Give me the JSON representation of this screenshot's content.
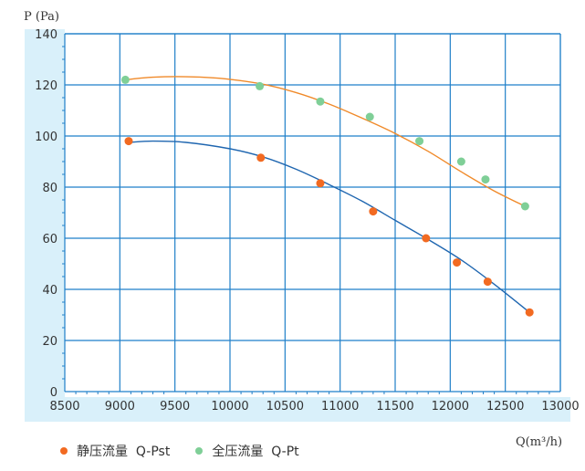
{
  "chart_data": {
    "type": "line",
    "ylabel": "P (Pa)",
    "xlabel": "Q(m³/h)",
    "xlim": [
      8500,
      13000
    ],
    "ylim": [
      0,
      140
    ],
    "x_ticks": [
      8500,
      9000,
      9500,
      10000,
      10500,
      11000,
      11500,
      12000,
      12500,
      13000
    ],
    "y_ticks": [
      0,
      20,
      40,
      60,
      80,
      100,
      120,
      140
    ],
    "grid": true,
    "legend_position": "bottom-left",
    "colors": {
      "plot_background": "#ffffff",
      "outer_background": "#d9f0fa",
      "grid": "#1f7fc9",
      "axis": "#1f7fc9"
    },
    "series": [
      {
        "name": "静压流量  Q-Pst",
        "marker_color": "#f26a21",
        "line_color": "#1f66b0",
        "points": [
          [
            9080,
            98
          ],
          [
            10280,
            91.5
          ],
          [
            10820,
            81.5
          ],
          [
            11300,
            70.5
          ],
          [
            11780,
            60
          ],
          [
            12060,
            50.5
          ],
          [
            12340,
            43
          ],
          [
            12720,
            31
          ]
        ],
        "curve": [
          [
            9080,
            97.5
          ],
          [
            9300,
            98
          ],
          [
            9600,
            97.5
          ],
          [
            10000,
            95
          ],
          [
            10300,
            91.8
          ],
          [
            10600,
            87
          ],
          [
            10900,
            81
          ],
          [
            11200,
            74.5
          ],
          [
            11500,
            67
          ],
          [
            11800,
            59.5
          ],
          [
            12100,
            51.5
          ],
          [
            12400,
            42
          ],
          [
            12720,
            31
          ]
        ]
      },
      {
        "name": "全压流量  Q-Pt",
        "marker_color": "#7fcf97",
        "line_color": "#f08a2a",
        "points": [
          [
            9050,
            122
          ],
          [
            10270,
            119.5
          ],
          [
            10820,
            113.5
          ],
          [
            11270,
            107.5
          ],
          [
            11720,
            98
          ],
          [
            12100,
            90
          ],
          [
            12320,
            83
          ],
          [
            12680,
            72.5
          ]
        ],
        "curve": [
          [
            9050,
            122
          ],
          [
            9300,
            123
          ],
          [
            9600,
            123.2
          ],
          [
            9900,
            122.6
          ],
          [
            10270,
            120.5
          ],
          [
            10600,
            117
          ],
          [
            10900,
            112.5
          ],
          [
            11200,
            107
          ],
          [
            11500,
            101
          ],
          [
            11800,
            94
          ],
          [
            12100,
            86
          ],
          [
            12400,
            78.5
          ],
          [
            12680,
            72.5
          ]
        ]
      }
    ]
  }
}
